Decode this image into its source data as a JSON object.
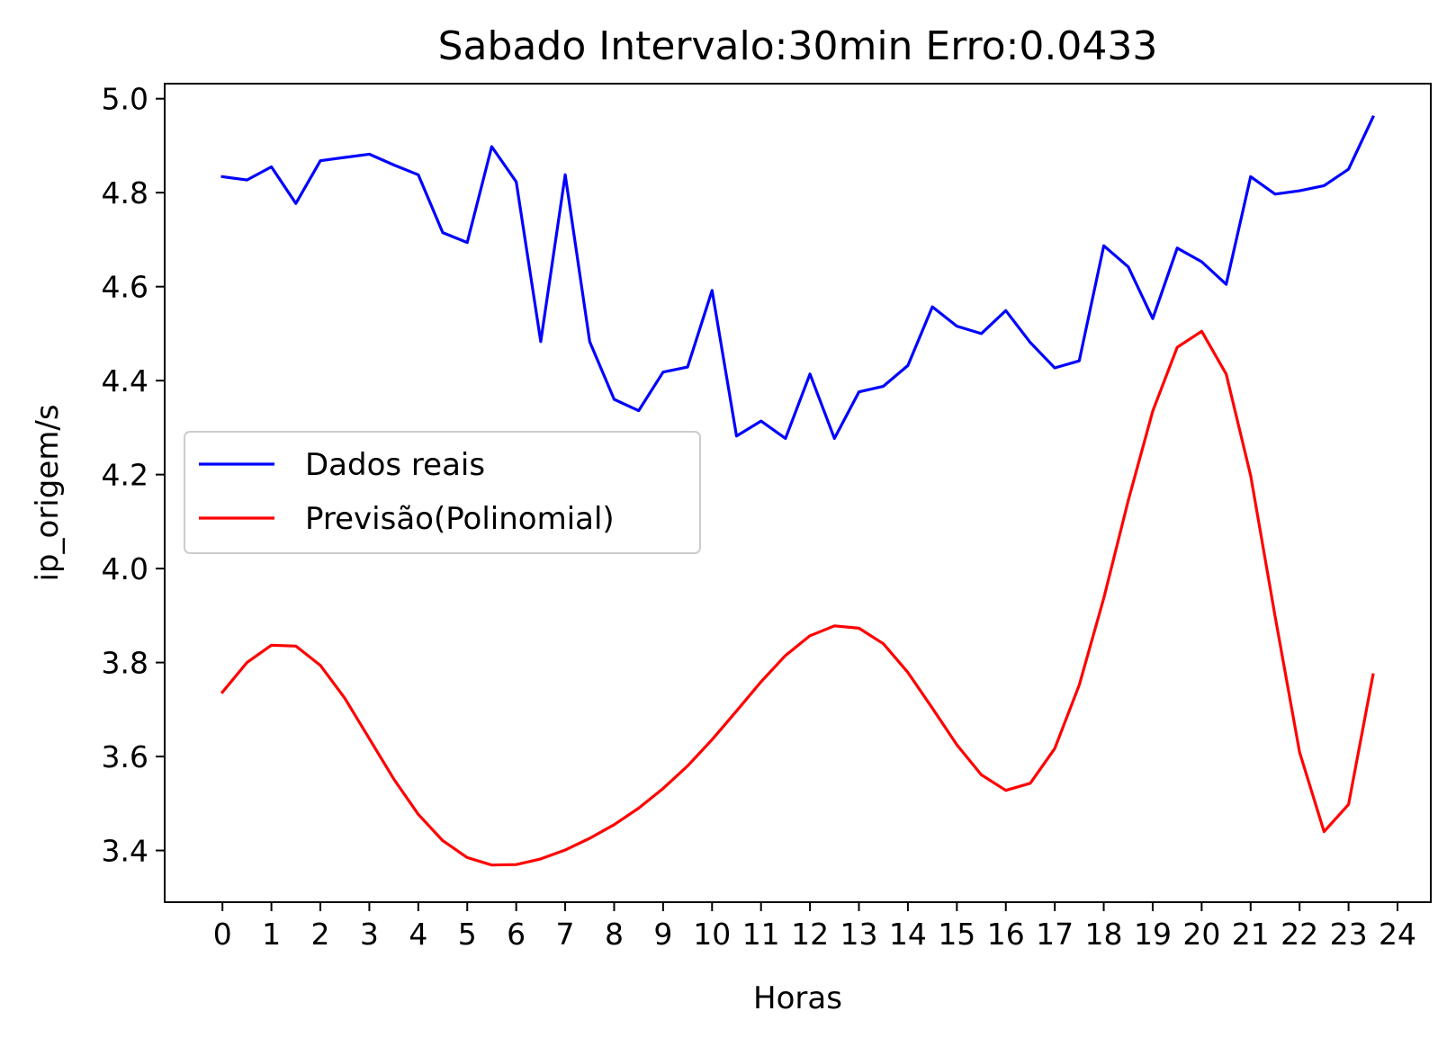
{
  "chart_data": {
    "type": "line",
    "title": "Sabado Intervalo:30min Erro:0.0433",
    "xlabel": "Horas",
    "ylabel": "ip_origem/s",
    "xlim": [
      -1.18,
      24.68
    ],
    "ylim": [
      3.29,
      5.032
    ],
    "xticks": [
      0,
      1,
      2,
      3,
      4,
      5,
      6,
      7,
      8,
      9,
      10,
      11,
      12,
      13,
      14,
      15,
      16,
      17,
      18,
      19,
      20,
      21,
      22,
      23,
      24
    ],
    "xtick_labels": [
      "0",
      "1",
      "2",
      "3",
      "4",
      "5",
      "6",
      "7",
      "8",
      "9",
      "10",
      "11",
      "12",
      "13",
      "14",
      "15",
      "16",
      "17",
      "18",
      "19",
      "20",
      "21",
      "22",
      "23",
      "24"
    ],
    "yticks": [
      3.4,
      3.6,
      3.8,
      4.0,
      4.2,
      4.4,
      4.6,
      4.8,
      5.0
    ],
    "ytick_labels": [
      "3.4",
      "3.6",
      "3.8",
      "4.0",
      "4.2",
      "4.4",
      "4.6",
      "4.8",
      "5.0"
    ],
    "grid": false,
    "legend_position": "center-left",
    "x": [
      0,
      0.5,
      1,
      1.5,
      2,
      2.5,
      3,
      3.5,
      4,
      4.5,
      5,
      5.5,
      6,
      6.5,
      7,
      7.5,
      8,
      8.5,
      9,
      9.5,
      10,
      10.5,
      11,
      11.5,
      12,
      12.5,
      13,
      13.5,
      14,
      14.5,
      15,
      15.5,
      16,
      16.5,
      17,
      17.5,
      18,
      18.5,
      19,
      19.5,
      20,
      20.5,
      21,
      21.5,
      22,
      22.5,
      23,
      23.5
    ],
    "series": [
      {
        "name": "Dados reais",
        "color": "#0000ff",
        "values": [
          4.834,
          4.827,
          4.855,
          4.777,
          4.868,
          4.875,
          4.882,
          4.859,
          4.838,
          4.715,
          4.694,
          4.898,
          4.823,
          4.483,
          4.838,
          4.483,
          4.36,
          4.336,
          4.418,
          4.429,
          4.592,
          4.282,
          4.314,
          4.277,
          4.414,
          4.277,
          4.376,
          4.388,
          4.432,
          4.557,
          4.516,
          4.5,
          4.549,
          4.481,
          4.427,
          4.442,
          4.687,
          4.642,
          4.532,
          4.682,
          4.653,
          4.605,
          4.834,
          4.797,
          4.804,
          4.815,
          4.85,
          4.961
        ]
      },
      {
        "name": "Previsão(Polinomial)",
        "color": "#ff0000",
        "values": [
          3.737,
          3.8,
          3.837,
          3.835,
          3.794,
          3.724,
          3.638,
          3.552,
          3.477,
          3.421,
          3.385,
          3.369,
          3.37,
          3.382,
          3.401,
          3.426,
          3.455,
          3.49,
          3.532,
          3.58,
          3.636,
          3.697,
          3.759,
          3.815,
          3.857,
          3.878,
          3.873,
          3.84,
          3.779,
          3.703,
          3.625,
          3.561,
          3.528,
          3.543,
          3.617,
          3.752,
          3.937,
          4.145,
          4.335,
          4.471,
          4.505,
          4.414,
          4.198,
          3.898,
          3.609,
          3.44,
          3.498,
          3.774
        ]
      }
    ]
  }
}
